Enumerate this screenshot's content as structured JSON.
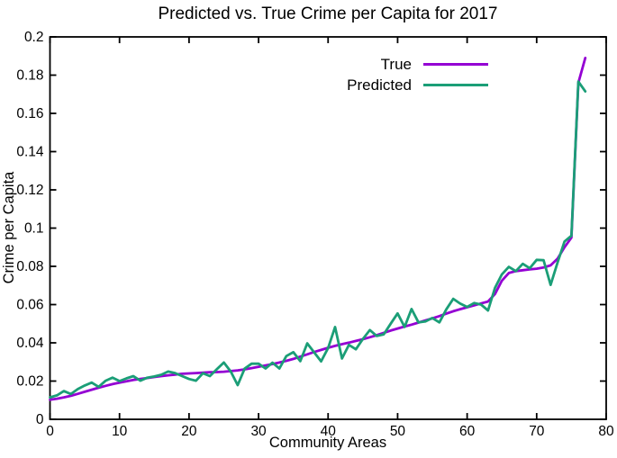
{
  "title": "Predicted vs. True Crime per Capita for 2017",
  "colors": {
    "true_line": "#9400D3",
    "predicted_line": "#1B9E77",
    "axis": "#000000",
    "background": "#FFFFFF",
    "text": "#000000"
  },
  "legend": {
    "entries": [
      {
        "label": "True",
        "color": "#9400D3"
      },
      {
        "label": "Predicted",
        "color": "#1B9E77"
      }
    ]
  },
  "chart_data": {
    "type": "line",
    "title": "Predicted vs. True Crime per Capita for 2017",
    "xlabel": "Community Areas",
    "ylabel": "Crime per Capita",
    "xlim": [
      0,
      80
    ],
    "ylim": [
      0,
      0.2
    ],
    "grid": false,
    "legend_position": "upper right inside, left of center-right",
    "x_ticks": [
      0,
      10,
      20,
      30,
      40,
      50,
      60,
      70,
      80
    ],
    "x_tick_labels": [
      "0",
      "10",
      "20",
      "30",
      "40",
      "50",
      "60",
      "70",
      "80"
    ],
    "y_ticks": [
      0,
      0.02,
      0.04,
      0.06,
      0.08,
      0.1,
      0.12,
      0.14,
      0.16,
      0.18,
      0.2
    ],
    "y_tick_labels": [
      "0",
      "0.02",
      "0.04",
      "0.06",
      "0.08",
      "0.1",
      "0.12",
      "0.14",
      "0.16",
      "0.18",
      "0.2"
    ],
    "x": [
      0,
      1,
      2,
      3,
      4,
      5,
      6,
      7,
      8,
      9,
      10,
      11,
      12,
      13,
      14,
      15,
      16,
      17,
      18,
      19,
      20,
      21,
      22,
      23,
      24,
      25,
      26,
      27,
      28,
      29,
      30,
      31,
      32,
      33,
      34,
      35,
      36,
      37,
      38,
      39,
      40,
      41,
      42,
      43,
      44,
      45,
      46,
      47,
      48,
      49,
      50,
      51,
      52,
      53,
      54,
      55,
      56,
      57,
      58,
      59,
      60,
      61,
      62,
      63,
      64,
      65,
      66,
      67,
      68,
      69,
      70,
      71,
      72,
      73,
      74,
      75,
      76,
      77
    ],
    "series": [
      {
        "name": "True",
        "color": "#9400D3",
        "values": [
          0.0102,
          0.0108,
          0.0115,
          0.0123,
          0.0133,
          0.0144,
          0.0155,
          0.0165,
          0.0175,
          0.0184,
          0.0192,
          0.0199,
          0.0206,
          0.0211,
          0.0216,
          0.0221,
          0.0226,
          0.023,
          0.0234,
          0.0238,
          0.024,
          0.0242,
          0.0244,
          0.0246,
          0.0247,
          0.0249,
          0.0252,
          0.0256,
          0.0261,
          0.0268,
          0.0275,
          0.0282,
          0.0289,
          0.0297,
          0.0306,
          0.0316,
          0.0328,
          0.034,
          0.0352,
          0.0363,
          0.0374,
          0.0384,
          0.0393,
          0.0401,
          0.041,
          0.0419,
          0.0429,
          0.044,
          0.0452,
          0.0464,
          0.0475,
          0.0485,
          0.0495,
          0.0506,
          0.0517,
          0.0528,
          0.054,
          0.0553,
          0.0565,
          0.0576,
          0.0586,
          0.0596,
          0.0606,
          0.0616,
          0.0655,
          0.0725,
          0.0765,
          0.0775,
          0.078,
          0.0784,
          0.0788,
          0.0794,
          0.0805,
          0.084,
          0.09,
          0.095,
          0.176,
          0.189
        ]
      },
      {
        "name": "Predicted",
        "color": "#1B9E77",
        "values": [
          0.0115,
          0.0125,
          0.0148,
          0.0132,
          0.0158,
          0.0177,
          0.0192,
          0.017,
          0.0202,
          0.0218,
          0.02,
          0.0214,
          0.0226,
          0.0202,
          0.0218,
          0.0224,
          0.0233,
          0.025,
          0.0242,
          0.0226,
          0.0211,
          0.0202,
          0.0241,
          0.0226,
          0.0262,
          0.0297,
          0.025,
          0.0179,
          0.0265,
          0.0291,
          0.0291,
          0.0266,
          0.0296,
          0.0266,
          0.0331,
          0.0351,
          0.0304,
          0.0397,
          0.035,
          0.0303,
          0.0373,
          0.0483,
          0.0318,
          0.0389,
          0.0366,
          0.042,
          0.0467,
          0.0436,
          0.0444,
          0.05,
          0.0554,
          0.0483,
          0.0577,
          0.0507,
          0.0512,
          0.053,
          0.0507,
          0.0575,
          0.063,
          0.0605,
          0.0588,
          0.0608,
          0.06,
          0.0569,
          0.0687,
          0.0758,
          0.0797,
          0.0775,
          0.0813,
          0.079,
          0.0834,
          0.0832,
          0.0703,
          0.082,
          0.093,
          0.096,
          0.1766,
          0.1715
        ]
      }
    ]
  }
}
